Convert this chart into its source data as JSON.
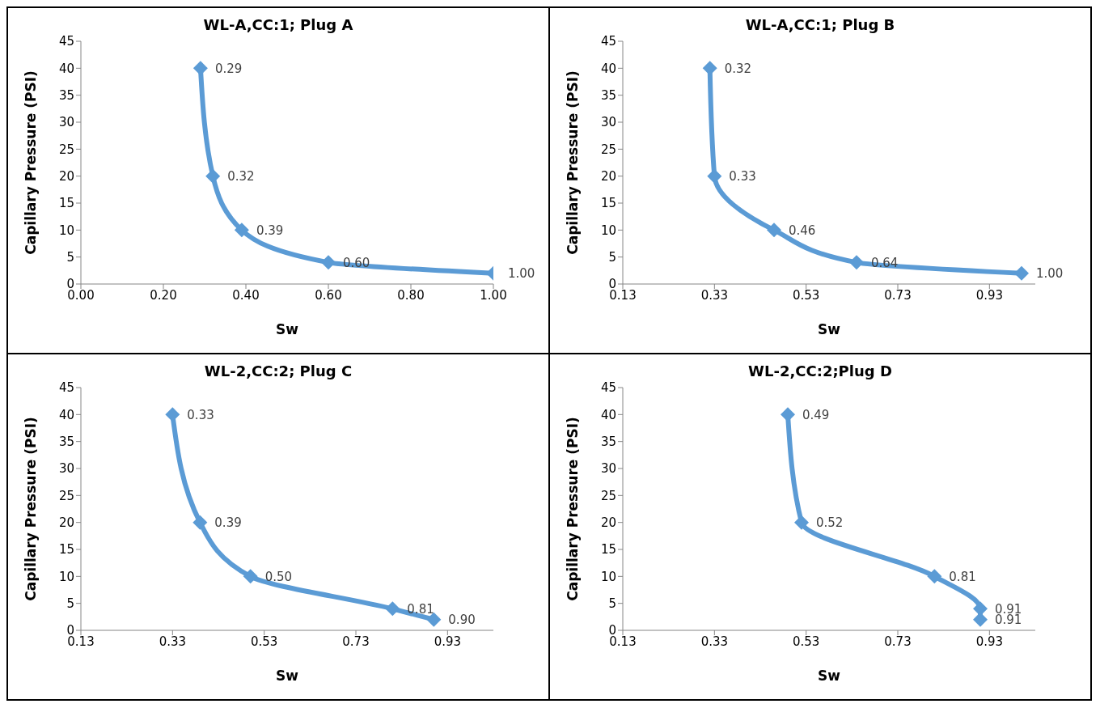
{
  "chart_data": [
    {
      "type": "line",
      "title": "WL-A,CC:1; Plug A",
      "xlabel": "Sw",
      "ylabel": "Capillary Pressure (PSI)",
      "x": [
        0.29,
        0.32,
        0.39,
        0.6,
        1.0
      ],
      "values": [
        40,
        20,
        10,
        4,
        2
      ],
      "color": "#5b9bd5",
      "marker": "diamond",
      "line_style": "solid",
      "xlim": [
        0,
        1
      ],
      "xticks": [
        {
          "value": 0,
          "label": "0.00"
        },
        {
          "value": 0.2,
          "label": "0.20"
        },
        {
          "value": 0.4,
          "label": "0.40"
        },
        {
          "value": 0.6,
          "label": "0.60"
        },
        {
          "value": 0.8,
          "label": "0.80"
        },
        {
          "value": 1,
          "label": "1.00"
        }
      ],
      "ylim": [
        0,
        45
      ],
      "yticks": [
        0,
        5,
        10,
        15,
        20,
        25,
        30,
        35,
        40,
        45
      ],
      "annotations": [
        {
          "text": "0.29",
          "x": 0.29,
          "y": 40
        },
        {
          "text": "0.32",
          "x": 0.32,
          "y": 20
        },
        {
          "text": "0.39",
          "x": 0.39,
          "y": 10
        },
        {
          "text": "0.60",
          "x": 0.6,
          "y": 4
        },
        {
          "text": "1.00",
          "x": 1.0,
          "y": 2
        }
      ]
    },
    {
      "type": "line",
      "title": "WL-A,CC:1; Plug B",
      "xlabel": "Sw",
      "ylabel": "Capillary Pressure (PSI)",
      "x": [
        0.32,
        0.33,
        0.46,
        0.64,
        1.0
      ],
      "values": [
        40,
        20,
        10,
        4,
        2
      ],
      "color": "#5b9bd5",
      "marker": "diamond",
      "line_style": "solid",
      "xlim": [
        0.13,
        1.03
      ],
      "xticks": [
        0.13,
        0.33,
        0.53,
        0.73,
        0.93
      ],
      "ylim": [
        0,
        45
      ],
      "yticks": [
        0,
        5,
        10,
        15,
        20,
        25,
        30,
        35,
        40,
        45
      ],
      "annotations": [
        {
          "text": "0.32",
          "x": 0.32,
          "y": 40
        },
        {
          "text": "0.33",
          "x": 0.33,
          "y": 20
        },
        {
          "text": "0.46",
          "x": 0.46,
          "y": 10
        },
        {
          "text": "0.64",
          "x": 0.64,
          "y": 4
        },
        {
          "text": "1.00",
          "x": 1.0,
          "y": 2
        }
      ]
    },
    {
      "type": "line",
      "title": "WL-2,CC:2; Plug C",
      "xlabel": "Sw",
      "ylabel": "Capillary Pressure (PSI)",
      "x": [
        0.33,
        0.39,
        0.5,
        0.81,
        0.9
      ],
      "values": [
        40,
        20,
        10,
        4,
        2
      ],
      "color": "#5b9bd5",
      "marker": "diamond",
      "line_style": "solid",
      "xlim": [
        0.13,
        1.03
      ],
      "xticks": [
        0.13,
        0.33,
        0.53,
        0.73,
        0.93
      ],
      "ylim": [
        0,
        45
      ],
      "yticks": [
        0,
        5,
        10,
        15,
        20,
        25,
        30,
        35,
        40,
        45
      ],
      "annotations": [
        {
          "text": "0.33",
          "x": 0.33,
          "y": 40
        },
        {
          "text": "0.39",
          "x": 0.39,
          "y": 20
        },
        {
          "text": "0.50",
          "x": 0.5,
          "y": 10
        },
        {
          "text": "0.81",
          "x": 0.81,
          "y": 4
        },
        {
          "text": "0.90",
          "x": 0.9,
          "y": 2
        }
      ]
    },
    {
      "type": "line",
      "title": "WL-2,CC:2;Plug D",
      "xlabel": "Sw",
      "ylabel": "Capillary Pressure (PSI)",
      "x": [
        0.49,
        0.52,
        0.81,
        0.91,
        0.91
      ],
      "values": [
        40,
        20,
        10,
        4,
        2
      ],
      "color": "#5b9bd5",
      "marker": "diamond",
      "line_style": "solid",
      "xlim": [
        0.13,
        1.03
      ],
      "xticks": [
        0.13,
        0.33,
        0.53,
        0.73,
        0.93
      ],
      "ylim": [
        0,
        45
      ],
      "yticks": [
        0,
        5,
        10,
        15,
        20,
        25,
        30,
        35,
        40,
        45
      ],
      "annotations": [
        {
          "text": "0.49",
          "x": 0.49,
          "y": 40
        },
        {
          "text": "0.52",
          "x": 0.52,
          "y": 20
        },
        {
          "text": "0.81",
          "x": 0.81,
          "y": 10
        },
        {
          "text": "0.91",
          "x": 0.91,
          "y": 4
        },
        {
          "text": "0.91",
          "x": 0.91,
          "y": 2
        }
      ]
    }
  ]
}
